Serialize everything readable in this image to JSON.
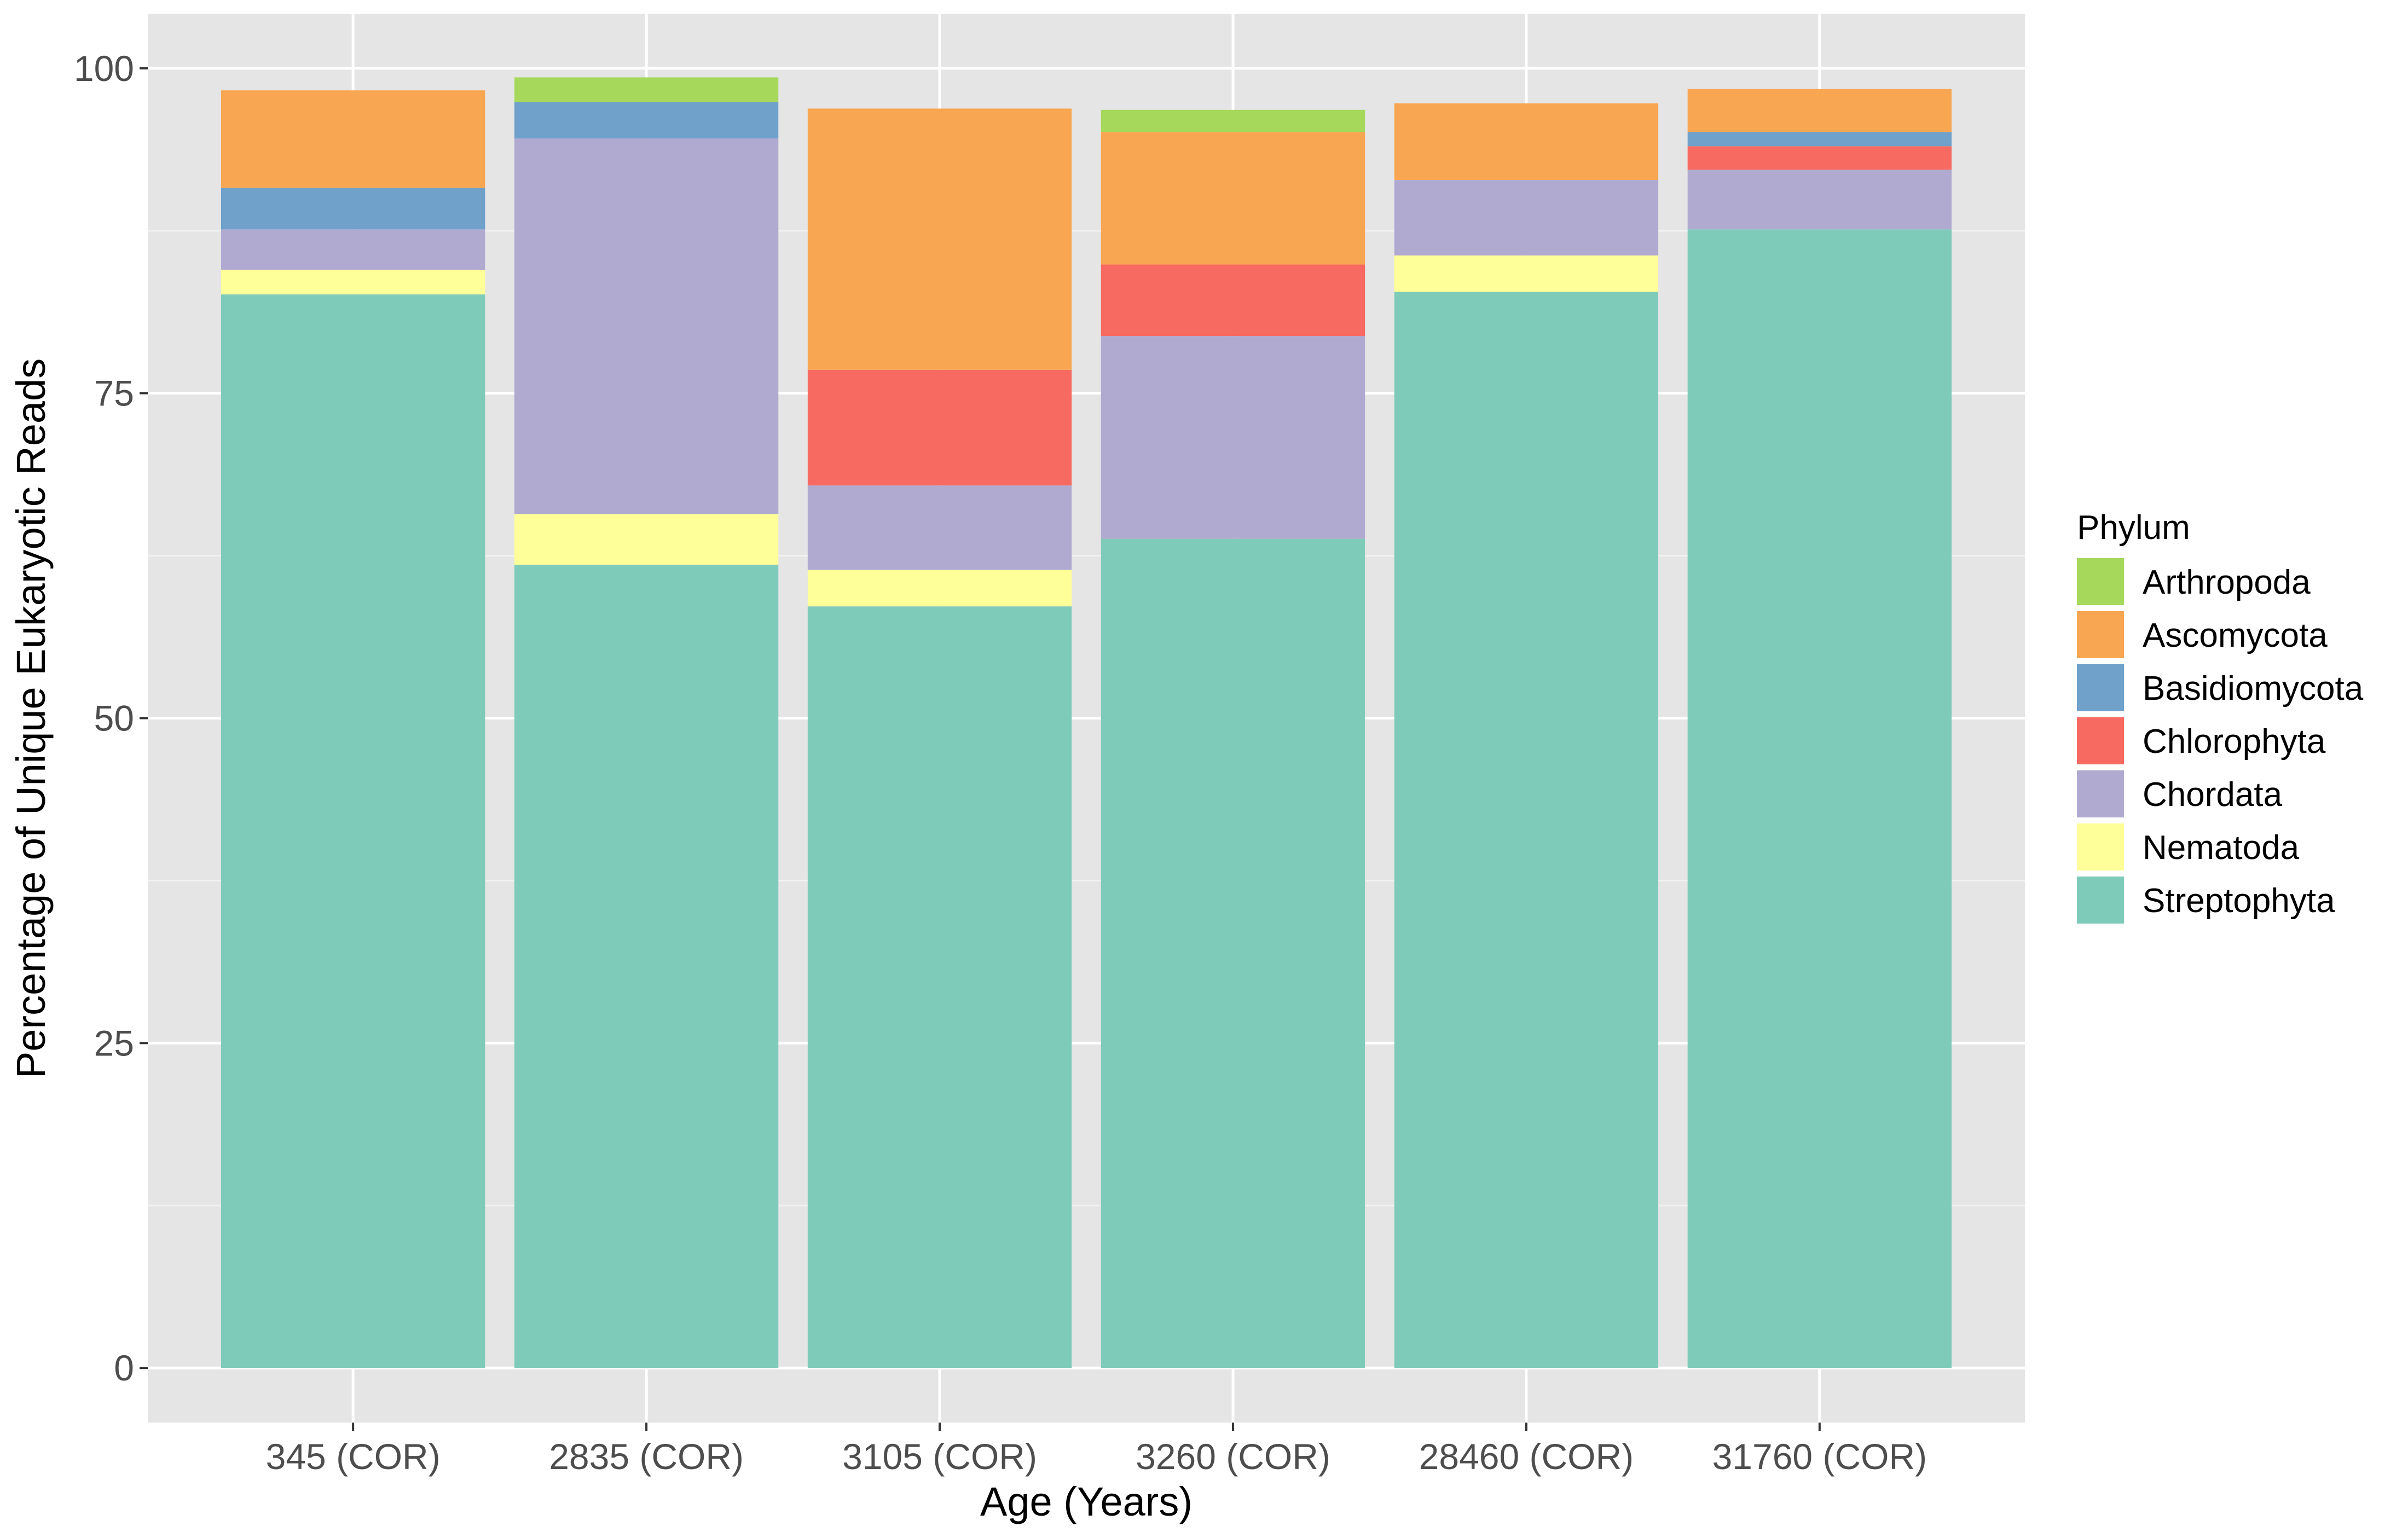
{
  "chart_data": {
    "type": "bar",
    "stacked": true,
    "xlabel": "Age (Years)",
    "ylabel": "Percentage of Unique Eukaryotic Reads",
    "ylim": [
      -4.2,
      104.2
    ],
    "y_ticks": [
      0,
      25,
      50,
      75,
      100
    ],
    "grid": true,
    "legend_title": "Phylum",
    "legend_position": "right",
    "categories": [
      "345 (COR)",
      "2835 (COR)",
      "3105 (COR)",
      "3260 (COR)",
      "28460 (COR)",
      "31760 (COR)"
    ],
    "series": [
      {
        "name": "Streptophyta",
        "color": "#7fcbba",
        "values": [
          82.6,
          61.8,
          58.6,
          63.8,
          82.8,
          87.6
        ]
      },
      {
        "name": "Nematoda",
        "color": "#ffff99",
        "values": [
          1.9,
          3.9,
          2.8,
          0,
          2.8,
          0
        ]
      },
      {
        "name": "Chordata",
        "color": "#b0aad1",
        "values": [
          3.1,
          28.9,
          6.5,
          15.6,
          5.8,
          4.6
        ]
      },
      {
        "name": "Chlorophyta",
        "color": "#f76a61",
        "values": [
          0,
          0,
          8.9,
          5.5,
          0,
          1.8
        ]
      },
      {
        "name": "Basidiomycota",
        "color": "#6fa1cb",
        "values": [
          3.2,
          2.8,
          0,
          0,
          0,
          1.1
        ]
      },
      {
        "name": "Ascomycota",
        "color": "#f9a653",
        "values": [
          7.5,
          0,
          20.1,
          10.2,
          5.9,
          3.3
        ]
      },
      {
        "name": "Arthropoda",
        "color": "#a6d95b",
        "values": [
          0,
          1.9,
          0,
          1.7,
          0,
          0
        ]
      }
    ],
    "legend_order": [
      "Arthropoda",
      "Ascomycota",
      "Basidiomycota",
      "Chlorophyta",
      "Chordata",
      "Nematoda",
      "Streptophyta"
    ]
  }
}
